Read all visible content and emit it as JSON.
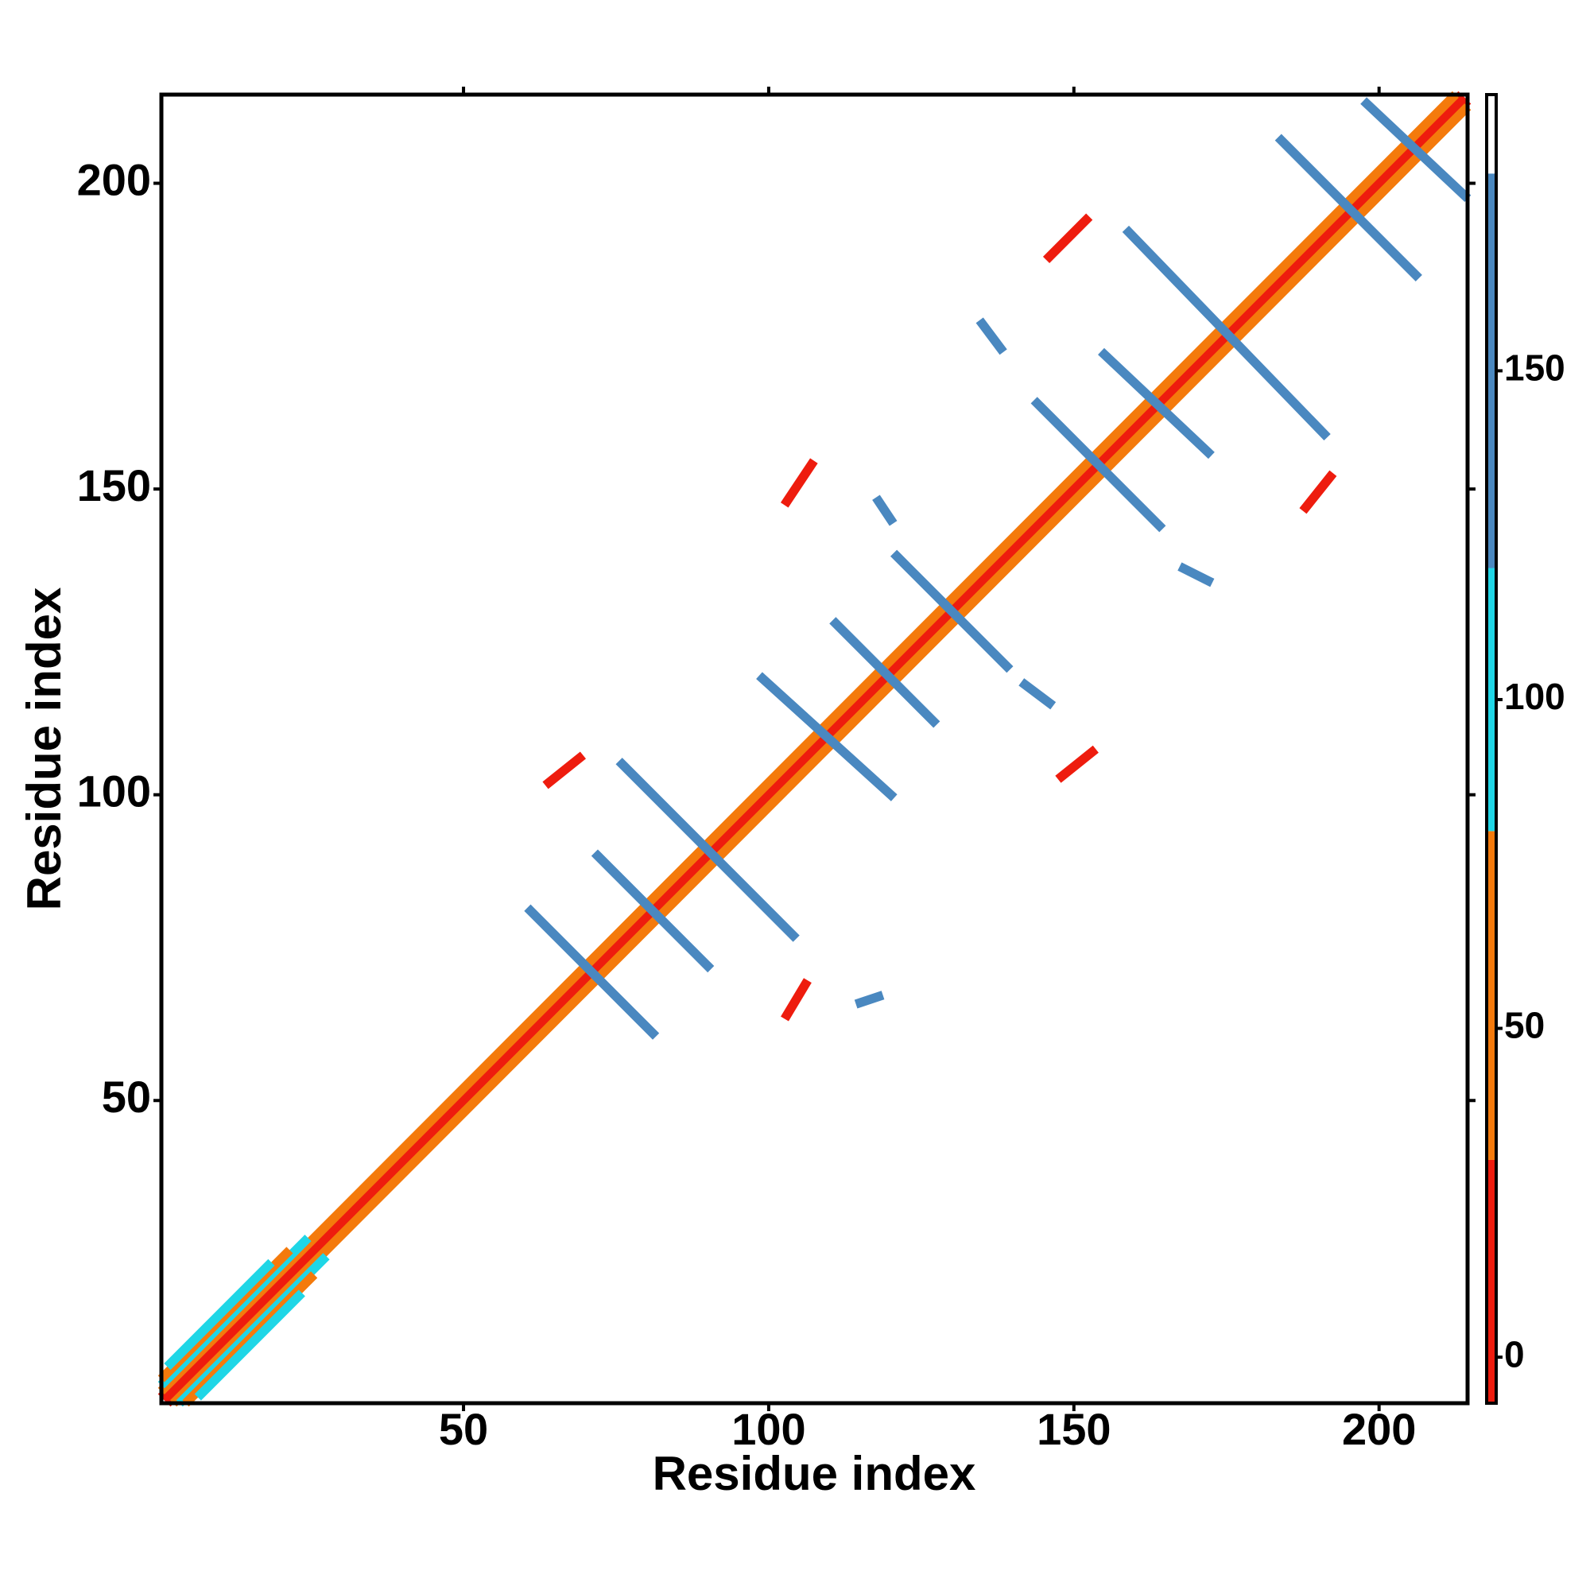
{
  "chart_data": {
    "type": "heatmap",
    "x_label": "Residue index",
    "y_label": "Residue index",
    "xlim": [
      0.5,
      214.5
    ],
    "ylim": [
      0.5,
      214.5
    ],
    "xticks": [
      50,
      100,
      150,
      200
    ],
    "yticks": [
      50,
      100,
      150,
      200
    ],
    "colorbar": {
      "lim": [
        -7,
        192
      ],
      "ticks": [
        0,
        50,
        100,
        150
      ],
      "bins": [
        -7,
        30,
        80,
        120,
        180,
        192
      ],
      "colors": [
        "#ee1c0e",
        "#f47a0c",
        "#1fd6e6",
        "#4a88c0",
        "#ffffff"
      ]
    },
    "segments": [
      {
        "x": [
          1,
          213
        ],
        "y": [
          2,
          214
        ],
        "value": 10
      },
      {
        "x": [
          2,
          214
        ],
        "y": [
          1,
          213
        ],
        "value": 10
      },
      {
        "x": [
          1,
          212
        ],
        "y": [
          3,
          214
        ],
        "value": 55
      },
      {
        "x": [
          3,
          214
        ],
        "y": [
          1,
          212
        ],
        "value": 55
      },
      {
        "x": [
          1,
          24
        ],
        "y": [
          4,
          27
        ],
        "value": 100
      },
      {
        "x": [
          4,
          27
        ],
        "y": [
          1,
          24
        ],
        "value": 100
      },
      {
        "x": [
          1,
          21
        ],
        "y": [
          5,
          25
        ],
        "value": 55
      },
      {
        "x": [
          5,
          25
        ],
        "y": [
          1,
          21
        ],
        "value": 55
      },
      {
        "x": [
          2,
          18
        ],
        "y": [
          7,
          23
        ],
        "value": 100
      },
      {
        "x": [
          7,
          23
        ],
        "y": [
          2,
          18
        ],
        "value": 100
      },
      {
        "x": [
          61,
          81
        ],
        "y": [
          81,
          61
        ],
        "value": 150
      },
      {
        "x": [
          76,
          104
        ],
        "y": [
          105,
          77
        ],
        "value": 150
      },
      {
        "x": [
          72,
          90
        ],
        "y": [
          90,
          72
        ],
        "value": 150
      },
      {
        "x": [
          99,
          120
        ],
        "y": [
          119,
          100
        ],
        "value": 150
      },
      {
        "x": [
          111,
          127
        ],
        "y": [
          128,
          112
        ],
        "value": 150
      },
      {
        "x": [
          121,
          139
        ],
        "y": [
          139,
          121
        ],
        "value": 150
      },
      {
        "x": [
          144,
          164
        ],
        "y": [
          164,
          144
        ],
        "value": 150
      },
      {
        "x": [
          155,
          172
        ],
        "y": [
          172,
          156
        ],
        "value": 150
      },
      {
        "x": [
          159,
          191
        ],
        "y": [
          192,
          159
        ],
        "value": 150
      },
      {
        "x": [
          184,
          206
        ],
        "y": [
          207,
          185
        ],
        "value": 150
      },
      {
        "x": [
          198,
          214
        ],
        "y": [
          213,
          198
        ],
        "value": 150
      },
      {
        "x": [
          148,
          153
        ],
        "y": [
          103,
          107
        ],
        "value": 10
      },
      {
        "x": [
          103,
          106
        ],
        "y": [
          64,
          69
        ],
        "value": 10
      },
      {
        "x": [
          64,
          69
        ],
        "y": [
          102,
          106
        ],
        "value": 10
      },
      {
        "x": [
          103,
          107
        ],
        "y": [
          148,
          154
        ],
        "value": 10
      },
      {
        "x": [
          146,
          152
        ],
        "y": [
          188,
          194
        ],
        "value": 10
      },
      {
        "x": [
          188,
          192
        ],
        "y": [
          147,
          152
        ],
        "value": 10
      },
      {
        "x": [
          115,
          118
        ],
        "y": [
          66,
          67
        ],
        "value": 150
      },
      {
        "x": [
          118,
          120
        ],
        "y": [
          148,
          145
        ],
        "value": 150
      },
      {
        "x": [
          168,
          172
        ],
        "y": [
          137,
          135
        ],
        "value": 150
      },
      {
        "x": [
          142,
          146
        ],
        "y": [
          118,
          115
        ],
        "value": 150
      },
      {
        "x": [
          135,
          138
        ],
        "y": [
          177,
          173
        ],
        "value": 150
      }
    ]
  }
}
